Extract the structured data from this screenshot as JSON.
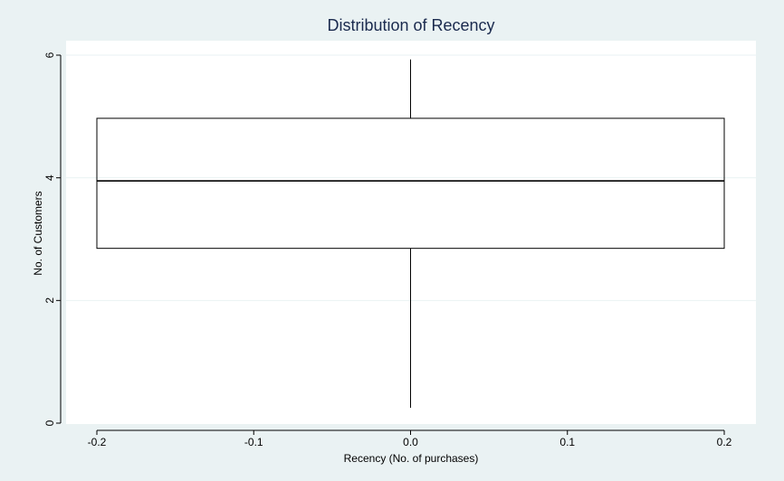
{
  "chart_data": {
    "type": "box",
    "title": "Distribution of Recency",
    "xlabel": "Recency (No. of purchases)",
    "ylabel": "No. of Customers",
    "x_ticks": [
      "-0.2",
      "-0.1",
      "0.0",
      "0.1",
      "0.2"
    ],
    "x_tick_values": [
      -0.2,
      -0.1,
      0.0,
      0.1,
      0.2
    ],
    "y_ticks": [
      "0",
      "2",
      "4",
      "6"
    ],
    "y_tick_values": [
      0,
      2,
      4,
      6
    ],
    "xlim": [
      -0.22,
      0.22
    ],
    "ylim": [
      0,
      6.2
    ],
    "box": {
      "x_min": -0.2,
      "x_max": 0.2,
      "whisker_x": 0.0,
      "lower_whisker": 0.25,
      "q1": 2.85,
      "median": 3.95,
      "q3": 4.97,
      "upper_whisker": 5.93
    },
    "grid": true,
    "colors": {
      "background": "#eaf2f3",
      "plot_background": "#ffffff",
      "title": "#1a2a4e",
      "gridline": "#eaf2f3",
      "box_line": "#000000"
    }
  }
}
